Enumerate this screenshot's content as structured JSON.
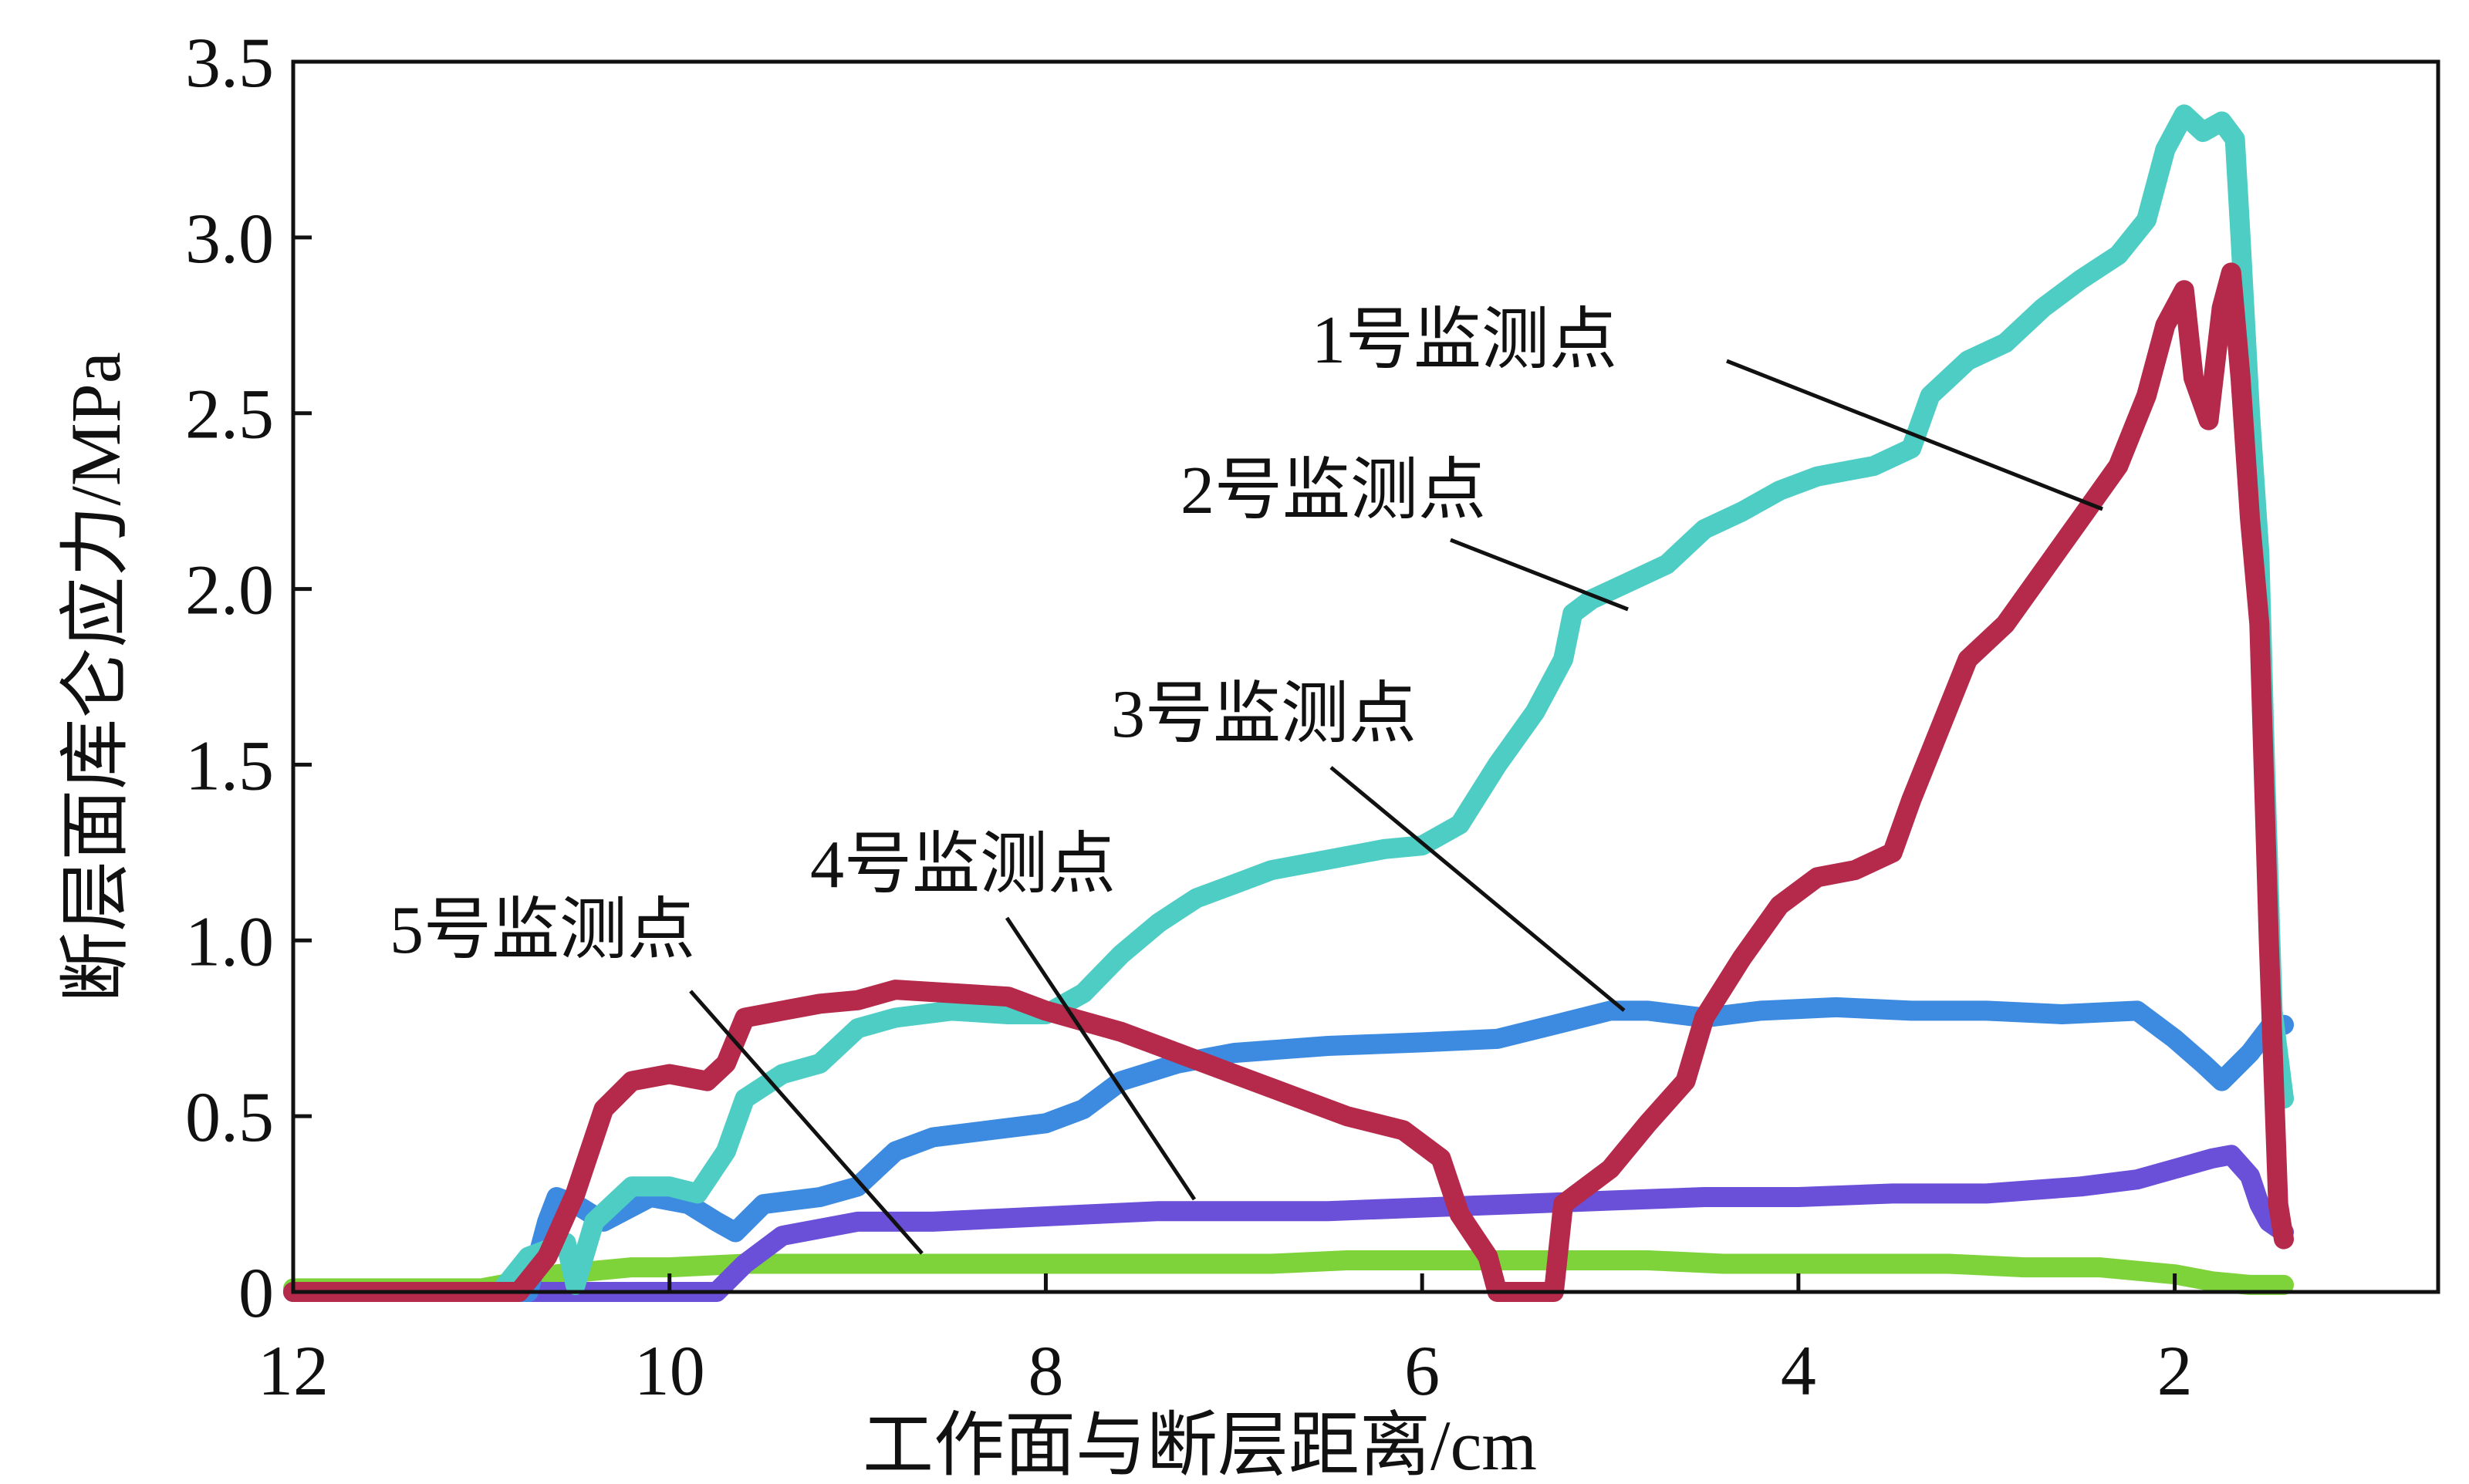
{
  "chart_data": {
    "type": "line",
    "title": "",
    "xlabel": "工作面与断层距离/cm",
    "ylabel": "断层面库仑应力/MPa",
    "xlim": [
      12,
      0.6
    ],
    "ylim": [
      0,
      3.5
    ],
    "x_reversed": true,
    "xticks": [
      12,
      10,
      8,
      6,
      4,
      2
    ],
    "xtick_labels": [
      "12",
      "10",
      "8",
      "6",
      "4",
      "2"
    ],
    "yticks": [
      0,
      0.5,
      1.0,
      1.5,
      2.0,
      2.5,
      3.0,
      3.5
    ],
    "ytick_labels": [
      "0",
      "0.5",
      "1.0",
      "1.5",
      "2.0",
      "2.5",
      "3.0",
      "3.5"
    ],
    "grid": false,
    "series": [
      {
        "name": "1号监测点",
        "color": "#4ECDC4",
        "points": [
          [
            12.0,
            0.0
          ],
          [
            10.9,
            0.0
          ],
          [
            10.75,
            0.1
          ],
          [
            10.55,
            0.14
          ],
          [
            10.5,
            0.02
          ],
          [
            10.4,
            0.2
          ],
          [
            10.2,
            0.3
          ],
          [
            10.0,
            0.3
          ],
          [
            9.85,
            0.28
          ],
          [
            9.7,
            0.4
          ],
          [
            9.6,
            0.55
          ],
          [
            9.4,
            0.62
          ],
          [
            9.2,
            0.65
          ],
          [
            9.0,
            0.75
          ],
          [
            8.8,
            0.78
          ],
          [
            8.5,
            0.8
          ],
          [
            8.2,
            0.79
          ],
          [
            8.0,
            0.79
          ],
          [
            7.8,
            0.85
          ],
          [
            7.6,
            0.96
          ],
          [
            7.4,
            1.05
          ],
          [
            7.2,
            1.12
          ],
          [
            7.0,
            1.16
          ],
          [
            6.8,
            1.2
          ],
          [
            6.5,
            1.23
          ],
          [
            6.2,
            1.26
          ],
          [
            6.0,
            1.27
          ],
          [
            5.8,
            1.33
          ],
          [
            5.6,
            1.5
          ],
          [
            5.4,
            1.65
          ],
          [
            5.25,
            1.8
          ],
          [
            5.2,
            1.93
          ],
          [
            5.1,
            1.97
          ],
          [
            4.9,
            2.02
          ],
          [
            4.7,
            2.07
          ],
          [
            4.5,
            2.17
          ],
          [
            4.3,
            2.22
          ],
          [
            4.1,
            2.28
          ],
          [
            3.9,
            2.32
          ],
          [
            3.6,
            2.35
          ],
          [
            3.4,
            2.4
          ],
          [
            3.3,
            2.55
          ],
          [
            3.1,
            2.65
          ],
          [
            2.9,
            2.7
          ],
          [
            2.7,
            2.8
          ],
          [
            2.5,
            2.88
          ],
          [
            2.3,
            2.95
          ],
          [
            2.15,
            3.05
          ],
          [
            2.05,
            3.25
          ],
          [
            1.95,
            3.35
          ],
          [
            1.85,
            3.3
          ],
          [
            1.75,
            3.33
          ],
          [
            1.68,
            3.28
          ],
          [
            1.65,
            3.0
          ],
          [
            1.6,
            2.5
          ],
          [
            1.55,
            2.1
          ],
          [
            1.52,
            1.5
          ],
          [
            1.48,
            0.8
          ],
          [
            1.42,
            0.55
          ]
        ]
      },
      {
        "name": "2号监测点",
        "color": "#B5294A",
        "points": [
          [
            12.0,
            0.0
          ],
          [
            10.8,
            0.0
          ],
          [
            10.65,
            0.1
          ],
          [
            10.5,
            0.28
          ],
          [
            10.35,
            0.52
          ],
          [
            10.2,
            0.6
          ],
          [
            10.0,
            0.62
          ],
          [
            9.8,
            0.6
          ],
          [
            9.7,
            0.65
          ],
          [
            9.6,
            0.78
          ],
          [
            9.4,
            0.8
          ],
          [
            9.2,
            0.82
          ],
          [
            9.0,
            0.83
          ],
          [
            8.8,
            0.86
          ],
          [
            8.5,
            0.85
          ],
          [
            8.2,
            0.84
          ],
          [
            8.0,
            0.8
          ],
          [
            7.6,
            0.74
          ],
          [
            7.3,
            0.68
          ],
          [
            7.0,
            0.62
          ],
          [
            6.7,
            0.56
          ],
          [
            6.4,
            0.5
          ],
          [
            6.1,
            0.46
          ],
          [
            5.9,
            0.38
          ],
          [
            5.8,
            0.22
          ],
          [
            5.65,
            0.1
          ],
          [
            5.6,
            0.0
          ],
          [
            5.3,
            0.0
          ],
          [
            5.25,
            0.25
          ],
          [
            5.0,
            0.35
          ],
          [
            4.8,
            0.48
          ],
          [
            4.6,
            0.6
          ],
          [
            4.5,
            0.78
          ],
          [
            4.3,
            0.95
          ],
          [
            4.1,
            1.1
          ],
          [
            3.9,
            1.18
          ],
          [
            3.7,
            1.2
          ],
          [
            3.5,
            1.25
          ],
          [
            3.4,
            1.4
          ],
          [
            3.25,
            1.6
          ],
          [
            3.1,
            1.8
          ],
          [
            2.9,
            1.9
          ],
          [
            2.7,
            2.05
          ],
          [
            2.5,
            2.2
          ],
          [
            2.3,
            2.35
          ],
          [
            2.15,
            2.55
          ],
          [
            2.05,
            2.75
          ],
          [
            1.95,
            2.85
          ],
          [
            1.9,
            2.6
          ],
          [
            1.82,
            2.48
          ],
          [
            1.75,
            2.8
          ],
          [
            1.7,
            2.9
          ],
          [
            1.65,
            2.6
          ],
          [
            1.6,
            2.2
          ],
          [
            1.55,
            1.9
          ],
          [
            1.5,
            1.0
          ],
          [
            1.45,
            0.25
          ],
          [
            1.42,
            0.15
          ]
        ]
      },
      {
        "name": "3号监测点",
        "color": "#3D8BE0",
        "points": [
          [
            12.0,
            0.0
          ],
          [
            10.75,
            0.0
          ],
          [
            10.65,
            0.2
          ],
          [
            10.6,
            0.27
          ],
          [
            10.5,
            0.25
          ],
          [
            10.35,
            0.2
          ],
          [
            10.1,
            0.27
          ],
          [
            9.9,
            0.25
          ],
          [
            9.75,
            0.2
          ],
          [
            9.65,
            0.17
          ],
          [
            9.5,
            0.25
          ],
          [
            9.2,
            0.27
          ],
          [
            9.0,
            0.3
          ],
          [
            8.8,
            0.4
          ],
          [
            8.6,
            0.44
          ],
          [
            8.3,
            0.46
          ],
          [
            8.0,
            0.48
          ],
          [
            7.8,
            0.52
          ],
          [
            7.6,
            0.6
          ],
          [
            7.3,
            0.65
          ],
          [
            7.0,
            0.68
          ],
          [
            6.5,
            0.7
          ],
          [
            6.0,
            0.71
          ],
          [
            5.6,
            0.72
          ],
          [
            5.3,
            0.76
          ],
          [
            5.0,
            0.8
          ],
          [
            4.8,
            0.8
          ],
          [
            4.5,
            0.78
          ],
          [
            4.2,
            0.8
          ],
          [
            3.8,
            0.81
          ],
          [
            3.4,
            0.8
          ],
          [
            3.0,
            0.8
          ],
          [
            2.6,
            0.79
          ],
          [
            2.2,
            0.8
          ],
          [
            2.0,
            0.72
          ],
          [
            1.85,
            0.65
          ],
          [
            1.75,
            0.6
          ],
          [
            1.6,
            0.68
          ],
          [
            1.5,
            0.75
          ],
          [
            1.42,
            0.76
          ]
        ]
      },
      {
        "name": "4号监测点",
        "color": "#6A4FD8",
        "points": [
          [
            12.0,
            0.0
          ],
          [
            9.75,
            0.0
          ],
          [
            9.6,
            0.08
          ],
          [
            9.4,
            0.16
          ],
          [
            9.2,
            0.18
          ],
          [
            9.0,
            0.2
          ],
          [
            8.6,
            0.2
          ],
          [
            8.2,
            0.21
          ],
          [
            7.8,
            0.22
          ],
          [
            7.4,
            0.23
          ],
          [
            7.0,
            0.23
          ],
          [
            6.5,
            0.23
          ],
          [
            6.0,
            0.24
          ],
          [
            5.5,
            0.25
          ],
          [
            5.0,
            0.26
          ],
          [
            4.5,
            0.27
          ],
          [
            4.0,
            0.27
          ],
          [
            3.5,
            0.28
          ],
          [
            3.0,
            0.28
          ],
          [
            2.5,
            0.3
          ],
          [
            2.2,
            0.32
          ],
          [
            2.0,
            0.35
          ],
          [
            1.8,
            0.38
          ],
          [
            1.7,
            0.39
          ],
          [
            1.6,
            0.33
          ],
          [
            1.55,
            0.25
          ],
          [
            1.5,
            0.2
          ],
          [
            1.42,
            0.17
          ]
        ]
      },
      {
        "name": "5号监测点",
        "color": "#7ED33A",
        "points": [
          [
            12.0,
            0.01
          ],
          [
            11.0,
            0.01
          ],
          [
            10.6,
            0.05
          ],
          [
            10.2,
            0.07
          ],
          [
            10.0,
            0.07
          ],
          [
            9.6,
            0.08
          ],
          [
            9.2,
            0.08
          ],
          [
            8.8,
            0.08
          ],
          [
            8.4,
            0.08
          ],
          [
            8.0,
            0.08
          ],
          [
            7.6,
            0.08
          ],
          [
            7.2,
            0.08
          ],
          [
            6.8,
            0.08
          ],
          [
            6.4,
            0.09
          ],
          [
            6.0,
            0.09
          ],
          [
            5.6,
            0.09
          ],
          [
            5.2,
            0.09
          ],
          [
            4.8,
            0.09
          ],
          [
            4.4,
            0.08
          ],
          [
            4.0,
            0.08
          ],
          [
            3.6,
            0.08
          ],
          [
            3.2,
            0.08
          ],
          [
            2.8,
            0.07
          ],
          [
            2.4,
            0.07
          ],
          [
            2.0,
            0.05
          ],
          [
            1.8,
            0.03
          ],
          [
            1.6,
            0.02
          ],
          [
            1.42,
            0.02
          ]
        ]
      }
    ]
  }
}
